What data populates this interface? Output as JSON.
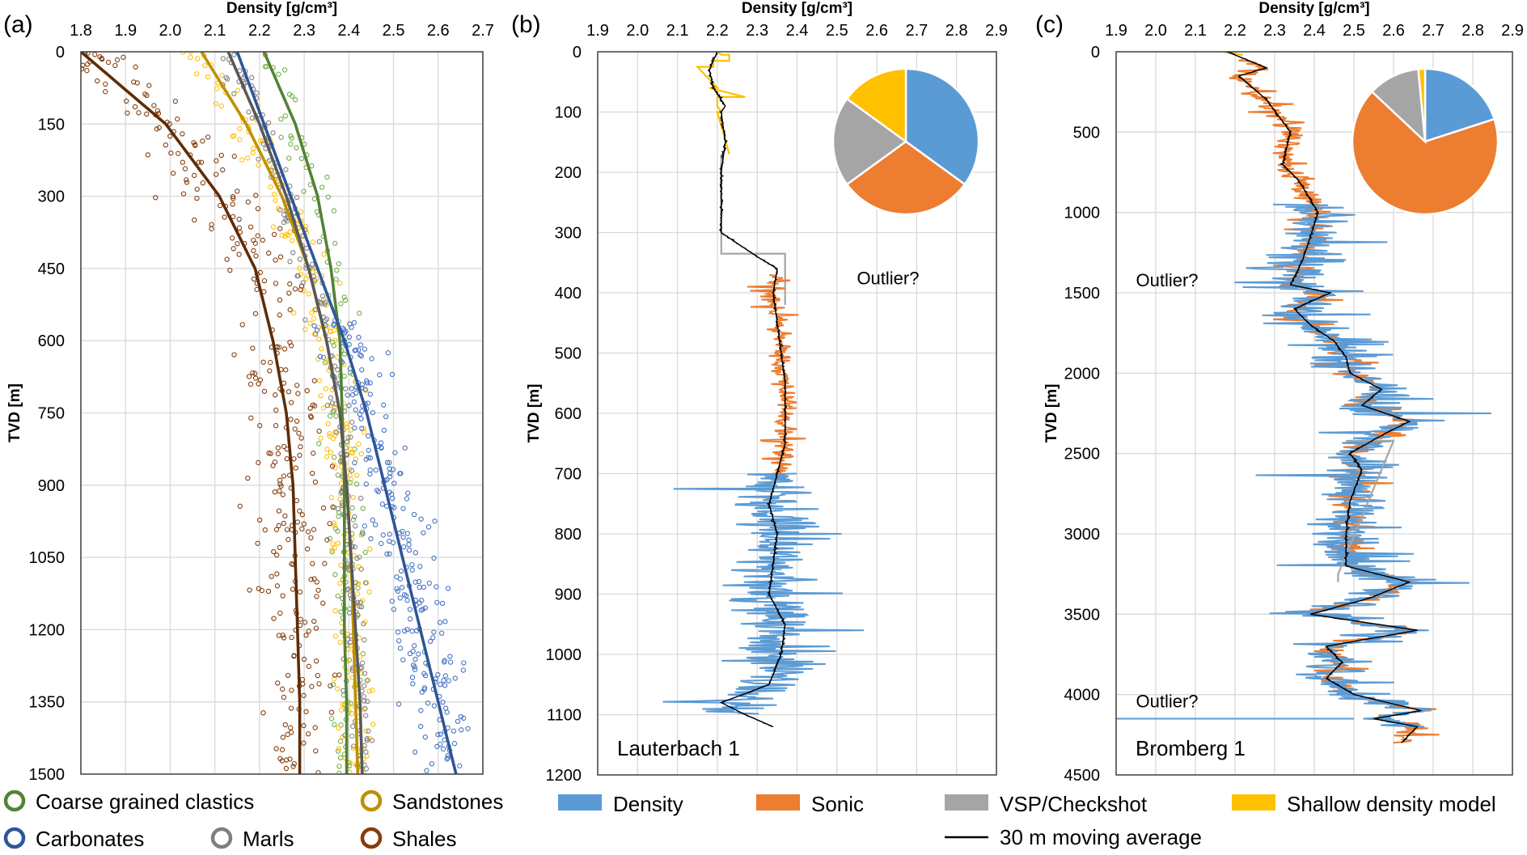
{
  "chart_data": [
    {
      "id": "a",
      "type": "scatter",
      "panel_label": "(a)",
      "title": "",
      "xlabel": "Density [g/cm³]",
      "ylabel": "TVD [m]",
      "xlim": [
        1.8,
        2.7
      ],
      "ylim": [
        0,
        1500
      ],
      "y_inverted": true,
      "x_ticks": [
        "1.8",
        "1.9",
        "2.0",
        "2.1",
        "2.2",
        "2.3",
        "2.4",
        "2.5",
        "2.6",
        "2.7"
      ],
      "y_ticks": [
        "0",
        "150",
        "300",
        "450",
        "600",
        "750",
        "900",
        "1050",
        "1200",
        "1350",
        "1500"
      ],
      "grid": true,
      "legend_position": "bottom",
      "series": [
        {
          "name": "Coarse grained clastics",
          "color": "#548235",
          "point_color": "#70ad47",
          "trend": {
            "depth": [
              0,
              150,
              300,
              450,
              600,
              750,
              900,
              1050,
              1200,
              1350,
              1500
            ],
            "density": [
              2.21,
              2.28,
              2.33,
              2.36,
              2.38,
              2.385,
              2.39,
              2.39,
              2.39,
              2.395,
              2.395
            ]
          },
          "cloud": {
            "depth_range": [
              0,
              1500
            ],
            "density_center": [
              2.3,
              2.38
            ],
            "spread": 0.04,
            "n": 140
          }
        },
        {
          "name": "Sandstones",
          "color": "#bf9000",
          "point_color": "#ffc000",
          "trend": {
            "depth": [
              0,
              150,
              300,
              450,
              600,
              750,
              900,
              1050,
              1200,
              1350,
              1500
            ],
            "density": [
              2.07,
              2.17,
              2.25,
              2.31,
              2.35,
              2.38,
              2.395,
              2.405,
              2.41,
              2.415,
              2.42
            ]
          },
          "cloud": {
            "depth_range": [
              0,
              1500
            ],
            "density_center": [
              2.12,
              2.4
            ],
            "spread": 0.05,
            "n": 260
          }
        },
        {
          "name": "Carbonates",
          "color": "#2f5597",
          "point_color": "#4472c4",
          "trend": {
            "depth": [
              0,
              150,
              300,
              450,
              600,
              750,
              900,
              1050,
              1200,
              1350,
              1500
            ],
            "density": [
              2.15,
              2.21,
              2.27,
              2.33,
              2.39,
              2.44,
              2.48,
              2.52,
              2.56,
              2.6,
              2.64
            ]
          },
          "cloud": {
            "depth_range": [
              550,
              1500
            ],
            "density_center": [
              2.4,
              2.6
            ],
            "spread": 0.07,
            "n": 260
          }
        },
        {
          "name": "Marls",
          "color": "#595959",
          "point_color": "#808080",
          "trend": {
            "depth": [
              0,
              150,
              300,
              450,
              600,
              750,
              900,
              1050,
              1200,
              1350,
              1500
            ],
            "density": [
              2.13,
              2.2,
              2.26,
              2.31,
              2.35,
              2.38,
              2.395,
              2.405,
              2.415,
              2.425,
              2.43
            ]
          },
          "cloud": {
            "depth_range": [
              0,
              1500
            ],
            "density_center": [
              2.16,
              2.42
            ],
            "spread": 0.03,
            "n": 220
          }
        },
        {
          "name": "Shales",
          "color": "#5e2c07",
          "point_color": "#843c0c",
          "trend": {
            "depth": [
              0,
              150,
              300,
              450,
              600,
              750,
              900,
              1050,
              1200,
              1350,
              1500
            ],
            "density": [
              1.8,
              1.99,
              2.11,
              2.19,
              2.23,
              2.26,
              2.275,
              2.28,
              2.285,
              2.29,
              2.29
            ]
          },
          "cloud": {
            "depth_range": [
              0,
              1500
            ],
            "density_center": [
              1.95,
              2.28
            ],
            "spread": 0.08,
            "n": 320
          }
        }
      ]
    },
    {
      "id": "b",
      "type": "line",
      "panel_label": "(b)",
      "xlabel": "Density [g/cm³]",
      "ylabel": "TVD [m]",
      "xlim": [
        1.9,
        2.9
      ],
      "ylim": [
        0,
        1200
      ],
      "y_inverted": true,
      "x_ticks": [
        "1.9",
        "2.0",
        "2.1",
        "2.2",
        "2.3",
        "2.4",
        "2.5",
        "2.6",
        "2.7",
        "2.8",
        "2.9"
      ],
      "y_ticks": [
        "0",
        "100",
        "200",
        "300",
        "400",
        "500",
        "600",
        "700",
        "800",
        "900",
        "1000",
        "1100",
        "1200"
      ],
      "grid": true,
      "well_name": "Lauterbach 1",
      "annotations": [
        {
          "text": "Outlier?",
          "depth": 375,
          "density": 2.55
        }
      ],
      "series": [
        {
          "name": "Shallow density model",
          "color": "#ffc000",
          "depth": [
            0,
            5,
            5,
            15,
            15,
            25,
            25,
            60,
            60,
            75,
            75,
            90,
            90,
            100,
            100,
            170
          ],
          "density": [
            2.2,
            2.21,
            2.23,
            2.23,
            2.19,
            2.19,
            2.15,
            2.2,
            2.18,
            2.27,
            2.2,
            2.2,
            2.2,
            2.21,
            2.2,
            2.23
          ]
        },
        {
          "name": "VSP/Checkshot",
          "color": "#a5a5a5",
          "depth": [
            170,
            335,
            335,
            380,
            420
          ],
          "density": [
            2.21,
            2.21,
            2.37,
            2.37,
            2.37
          ]
        },
        {
          "name": "Sonic",
          "color": "#ed7d31",
          "noisy": {
            "depth_range": [
              370,
              710
            ],
            "center": [
              2.33,
              2.37
            ],
            "spread": 0.04
          }
        },
        {
          "name": "Density",
          "color": "#5b9bd5",
          "noisy": {
            "depth_range": [
              700,
              1100
            ],
            "center": [
              2.33,
              2.36
            ],
            "spread": 0.12
          }
        },
        {
          "name": "30 m moving average",
          "color": "#000000",
          "depth": [
            0,
            30,
            60,
            90,
            100,
            150,
            200,
            300,
            340,
            360,
            400,
            450,
            500,
            550,
            600,
            650,
            700,
            750,
            800,
            850,
            900,
            950,
            1000,
            1050,
            1080,
            1100,
            1120
          ],
          "density": [
            2.2,
            2.18,
            2.19,
            2.22,
            2.21,
            2.22,
            2.21,
            2.21,
            2.3,
            2.35,
            2.34,
            2.35,
            2.36,
            2.37,
            2.37,
            2.37,
            2.35,
            2.33,
            2.35,
            2.34,
            2.33,
            2.37,
            2.36,
            2.33,
            2.21,
            2.27,
            2.34
          ]
        }
      ],
      "pie": {
        "slices": [
          {
            "name": "Density",
            "fraction": 0.35,
            "color": "#5b9bd5"
          },
          {
            "name": "Sonic",
            "fraction": 0.3,
            "color": "#ed7d31"
          },
          {
            "name": "VSP/Checkshot",
            "fraction": 0.2,
            "color": "#a5a5a5"
          },
          {
            "name": "Shallow density model",
            "fraction": 0.15,
            "color": "#ffc000"
          }
        ]
      }
    },
    {
      "id": "c",
      "type": "line",
      "panel_label": "(c)",
      "xlabel": "Density [g/cm³]",
      "ylabel": "TVD [m]",
      "xlim": [
        1.9,
        2.9
      ],
      "ylim": [
        0,
        4500
      ],
      "y_inverted": true,
      "x_ticks": [
        "1.9",
        "2.0",
        "2.1",
        "2.2",
        "2.3",
        "2.4",
        "2.5",
        "2.6",
        "2.7",
        "2.8",
        "2.9"
      ],
      "y_ticks": [
        "0",
        "500",
        "1000",
        "1500",
        "2000",
        "2500",
        "3000",
        "3500",
        "4000",
        "4500"
      ],
      "grid": true,
      "well_name": "Bromberg 1",
      "annotations": [
        {
          "text": "Outlier?",
          "depth": 1420,
          "density": 1.95
        },
        {
          "text": "Outlier?",
          "depth": 4040,
          "density": 1.95
        }
      ],
      "series": [
        {
          "name": "Shallow density model",
          "color": "#ffc000",
          "depth": [
            0,
            20,
            20
          ],
          "density": [
            2.17,
            2.22,
            2.22
          ]
        },
        {
          "name": "Sonic",
          "color": "#ed7d31",
          "noisy": {
            "depth_range": [
              50,
              4300
            ],
            "center": [
              2.2,
              2.6
            ],
            "spread": 0.05
          }
        },
        {
          "name": "Density",
          "color": "#5b9bd5",
          "noisy": {
            "depth_range": [
              950,
              4200
            ],
            "center": [
              2.35,
              2.6
            ],
            "spread": 0.12
          },
          "outlier": {
            "depth": 4150,
            "density": [
              1.9,
              2.5
            ]
          }
        },
        {
          "name": "VSP/Checkshot",
          "color": "#a5a5a5",
          "depth": [
            2420,
            2420,
            3250,
            3300
          ],
          "density": [
            2.48,
            2.6,
            2.46,
            2.46
          ]
        },
        {
          "name": "30 m moving average",
          "color": "#000000",
          "depth": [
            0,
            100,
            150,
            300,
            500,
            700,
            800,
            1000,
            1300,
            1450,
            1500,
            1600,
            1700,
            1800,
            1900,
            2000,
            2100,
            2200,
            2300,
            2400,
            2500,
            2600,
            2800,
            3000,
            3200,
            3300,
            3400,
            3500,
            3600,
            3700,
            3800,
            3900,
            4000,
            4100,
            4150,
            4200,
            4300
          ],
          "density": [
            2.18,
            2.28,
            2.21,
            2.28,
            2.34,
            2.32,
            2.36,
            2.41,
            2.37,
            2.34,
            2.44,
            2.35,
            2.39,
            2.45,
            2.48,
            2.49,
            2.57,
            2.52,
            2.64,
            2.56,
            2.49,
            2.52,
            2.49,
            2.48,
            2.48,
            2.64,
            2.54,
            2.39,
            2.66,
            2.43,
            2.47,
            2.43,
            2.5,
            2.67,
            2.55,
            2.66,
            2.62
          ]
        }
      ],
      "pie": {
        "slices": [
          {
            "name": "Density",
            "fraction": 0.2,
            "color": "#5b9bd5"
          },
          {
            "name": "Sonic",
            "fraction": 0.67,
            "color": "#ed7d31"
          },
          {
            "name": "VSP/Checkshot",
            "fraction": 0.115,
            "color": "#a5a5a5"
          },
          {
            "name": "Shallow density model",
            "fraction": 0.015,
            "color": "#ffc000"
          }
        ]
      }
    }
  ],
  "legend_a": [
    {
      "label": "Coarse grained clastics",
      "color": "#548235"
    },
    {
      "label": "Sandstones",
      "color": "#bf9000"
    },
    {
      "label": "Carbonates",
      "color": "#2f5597"
    },
    {
      "label": "Marls",
      "color": "#7f7f7f"
    },
    {
      "label": "Shales",
      "color": "#843c0c"
    }
  ],
  "legend_bc": [
    {
      "label": "Density",
      "color": "#5b9bd5",
      "kind": "box"
    },
    {
      "label": "Sonic",
      "color": "#ed7d31",
      "kind": "box"
    },
    {
      "label": "VSP/Checkshot",
      "color": "#a5a5a5",
      "kind": "box"
    },
    {
      "label": "Shallow density model",
      "color": "#ffc000",
      "kind": "box"
    },
    {
      "label": "30 m moving average",
      "color": "#000000",
      "kind": "line"
    }
  ]
}
